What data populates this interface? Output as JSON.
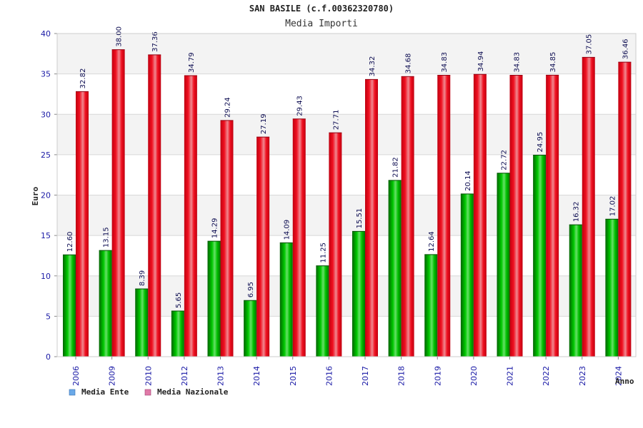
{
  "chart_data": {
    "type": "bar",
    "title": "SAN BASILE (c.f.00362320780)",
    "subtitle": "Media Importi",
    "ylabel": "Euro",
    "xlabel": "Anno",
    "ylim": [
      0,
      40
    ],
    "yticks": [
      0,
      5,
      10,
      15,
      20,
      25,
      30,
      35,
      40
    ],
    "grid": true,
    "legend_position": "bottom-left",
    "categories": [
      "2006",
      "2009",
      "2010",
      "2012",
      "2013",
      "2014",
      "2015",
      "2016",
      "2017",
      "2018",
      "2019",
      "2020",
      "2021",
      "2022",
      "2023",
      "2024"
    ],
    "series": [
      {
        "name": "Media Ente",
        "color": "#00b000",
        "legend_color": "#6aa9e8",
        "values": [
          12.6,
          13.15,
          8.39,
          5.65,
          14.29,
          6.95,
          14.09,
          11.25,
          15.51,
          21.82,
          12.64,
          20.14,
          22.72,
          24.95,
          16.32,
          17.02
        ],
        "labels": [
          "12.60",
          "13.15",
          "8.39",
          "5.65",
          "14.29",
          "6.95",
          "14.09",
          "11.25",
          "15.51",
          "21.82",
          "12.64",
          "20.14",
          "22.72",
          "24.95",
          "16.32",
          "17.02"
        ]
      },
      {
        "name": "Media Nazionale",
        "color": "#e8141e",
        "legend_color": "#e07aa8",
        "values": [
          32.82,
          38.0,
          37.36,
          34.79,
          29.24,
          27.19,
          29.43,
          27.71,
          34.32,
          34.68,
          34.83,
          34.94,
          34.83,
          34.85,
          37.05,
          36.46
        ],
        "labels": [
          "32.82",
          "38.00",
          "37.36",
          "34.79",
          "29.24",
          "27.19",
          "29.43",
          "27.71",
          "34.32",
          "34.68",
          "34.83",
          "34.94",
          "34.83",
          "34.85",
          "37.05",
          "36.46"
        ]
      }
    ]
  }
}
